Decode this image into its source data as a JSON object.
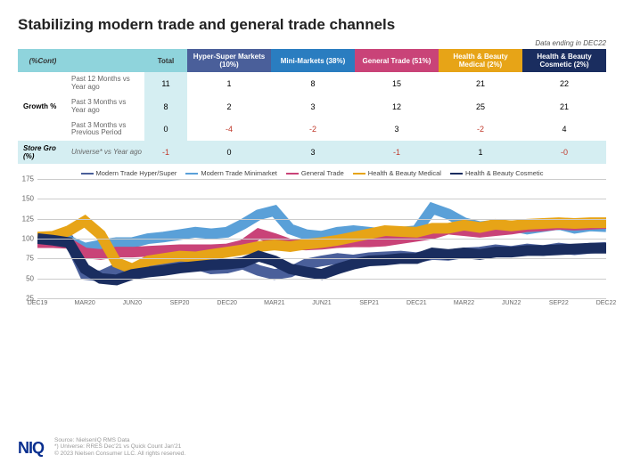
{
  "title": "Stabilizing modern trade and general trade channels",
  "data_note": "Data ending in DEC22",
  "table": {
    "corner_pct": "(%Cont)",
    "corner_total": "Total",
    "cols": [
      {
        "label": "Hyper-Super Markets (10%)",
        "bg": "#4a5f9a"
      },
      {
        "label": "Mini-Markets (38%)",
        "bg": "#2a7dc0"
      },
      {
        "label": "General Trade (51%)",
        "bg": "#c94378"
      },
      {
        "label": "Health & Beauty Medical (2%)",
        "bg": "#e7a417"
      },
      {
        "label": "Health & Beauty Cosmetic (2%)",
        "bg": "#1a2d5f"
      }
    ],
    "growth_label": "Growth %",
    "store_label": "Store Gro (%)",
    "rows": [
      {
        "sub": "Past 12 Months vs Year ago",
        "total": "11",
        "vals": [
          "1",
          "8",
          "15",
          "21",
          "22"
        ]
      },
      {
        "sub": "Past 3 Months vs Year ago",
        "total": "8",
        "vals": [
          "2",
          "3",
          "12",
          "25",
          "21"
        ]
      },
      {
        "sub": "Past 3 Months vs Previous Period",
        "total": "0",
        "vals": [
          "-4",
          "-2",
          "3",
          "-2",
          "4"
        ]
      }
    ],
    "store": {
      "sub": "Universe* vs Year ago",
      "total": "-1",
      "vals": [
        "0",
        "3",
        "-1",
        "1",
        "-0"
      ]
    }
  },
  "chart": {
    "type": "line",
    "ylim": [
      25,
      175
    ],
    "ytick_step": 25,
    "grid_color": "#cccccc",
    "x_labels": [
      "DEC19",
      "MAR20",
      "JUN20",
      "SEP20",
      "DEC20",
      "MAR21",
      "JUN21",
      "SEP21",
      "DEC21",
      "MAR22",
      "JUN22",
      "SEP22",
      "DEC22"
    ],
    "series": [
      {
        "name": "Modern Trade Hyper/Super",
        "color": "#4a5f9a",
        "values": [
          100,
          103,
          98,
          55,
          53,
          62,
          60,
          67,
          70,
          73,
          68,
          62,
          63,
          68,
          60,
          55,
          58,
          68,
          72,
          75,
          73,
          76,
          77,
          78,
          76,
          80,
          79,
          82,
          83,
          86,
          84,
          87,
          85,
          88,
          86,
          88,
          89
        ]
      },
      {
        "name": "Modern Trade Minimarket",
        "color": "#5aa0d8",
        "values": [
          100,
          100,
          97,
          88,
          92,
          95,
          95,
          100,
          102,
          105,
          108,
          106,
          108,
          118,
          130,
          135,
          112,
          105,
          103,
          108,
          110,
          108,
          106,
          108,
          110,
          138,
          131,
          120,
          115,
          117,
          116,
          112,
          115,
          118,
          113,
          116,
          115
        ]
      },
      {
        "name": "General Trade",
        "color": "#c94378",
        "values": [
          95,
          95,
          94,
          82,
          80,
          83,
          83,
          84,
          85,
          86,
          86,
          86,
          87,
          92,
          106,
          100,
          93,
          92,
          93,
          95,
          96,
          96,
          97,
          100,
          103,
          106,
          112,
          110,
          108,
          110,
          112,
          115,
          116,
          118,
          117,
          118,
          119
        ]
      },
      {
        "name": "Health & Beauty Medical",
        "color": "#e7a417",
        "values": [
          102,
          103,
          110,
          122,
          105,
          70,
          62,
          72,
          75,
          78,
          77,
          80,
          83,
          86,
          90,
          92,
          90,
          93,
          95,
          98,
          102,
          106,
          110,
          109,
          108,
          113,
          113,
          117,
          114,
          118,
          116,
          118,
          119,
          120,
          119,
          120,
          120
        ]
      },
      {
        "name": "Health & Beauty Cosmetic",
        "color": "#1a2d5f",
        "values": [
          100,
          98,
          95,
          62,
          50,
          48,
          55,
          58,
          60,
          63,
          65,
          67,
          68,
          70,
          78,
          72,
          62,
          58,
          55,
          62,
          68,
          72,
          73,
          75,
          75,
          82,
          80,
          82,
          80,
          83,
          83,
          85,
          85,
          86,
          87,
          88,
          88
        ]
      }
    ]
  },
  "footer": {
    "logo": "NIQ",
    "source": "Source: NielsenIQ RMS Data",
    "note1": "*) Universe: RRES Dec'21 vs Quick Count Jan'21",
    "note2": "© 2023 Nielsen Consumer LLC. All rights reserved."
  }
}
